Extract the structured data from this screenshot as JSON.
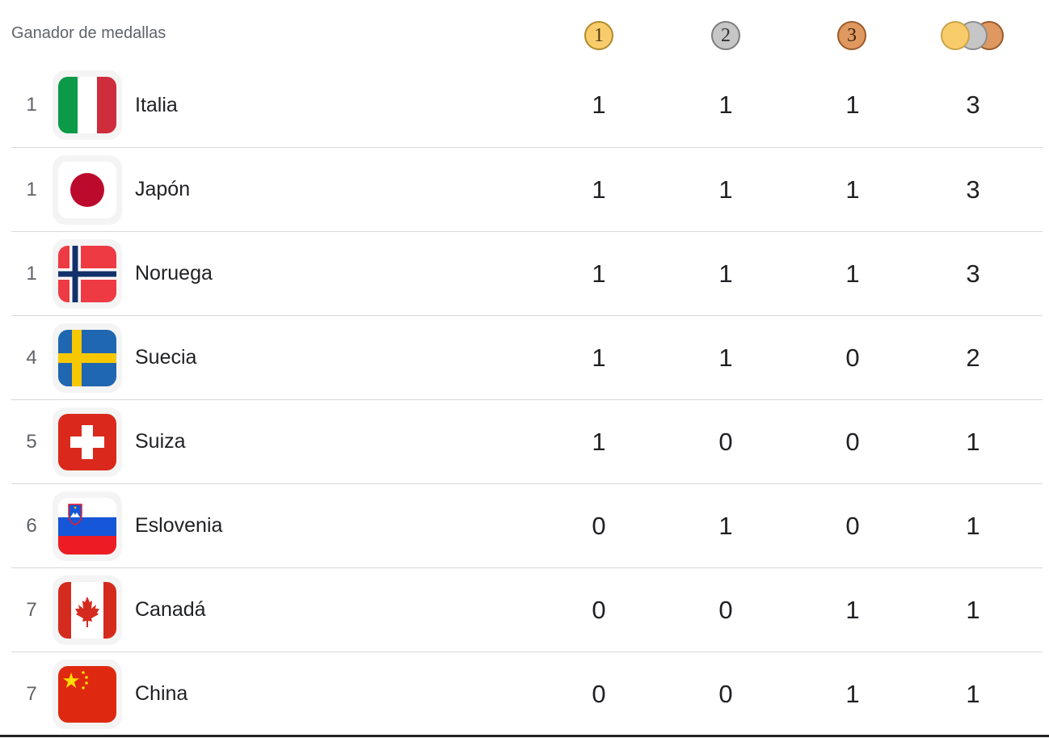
{
  "header": {
    "title": "Ganador de medallas",
    "gold_label": "1",
    "silver_label": "2",
    "bronze_label": "3",
    "total_icon": "stacked-medals-icon"
  },
  "colors": {
    "gold": "#f9cc6b",
    "silver": "#c6c6c6",
    "bronze": "#df9960",
    "divider": "#d8d8d8"
  },
  "rows": [
    {
      "rank": "1",
      "country": "Italia",
      "flag": "italy-flag-icon",
      "gold": "1",
      "silver": "1",
      "bronze": "1",
      "total": "3"
    },
    {
      "rank": "1",
      "country": "Japón",
      "flag": "japan-flag-icon",
      "gold": "1",
      "silver": "1",
      "bronze": "1",
      "total": "3"
    },
    {
      "rank": "1",
      "country": "Noruega",
      "flag": "norway-flag-icon",
      "gold": "1",
      "silver": "1",
      "bronze": "1",
      "total": "3"
    },
    {
      "rank": "4",
      "country": "Suecia",
      "flag": "sweden-flag-icon",
      "gold": "1",
      "silver": "1",
      "bronze": "0",
      "total": "2"
    },
    {
      "rank": "5",
      "country": "Suiza",
      "flag": "switzerland-flag-icon",
      "gold": "1",
      "silver": "0",
      "bronze": "0",
      "total": "1"
    },
    {
      "rank": "6",
      "country": "Eslovenia",
      "flag": "slovenia-flag-icon",
      "gold": "0",
      "silver": "1",
      "bronze": "0",
      "total": "1"
    },
    {
      "rank": "7",
      "country": "Canadá",
      "flag": "canada-flag-icon",
      "gold": "0",
      "silver": "0",
      "bronze": "1",
      "total": "1"
    },
    {
      "rank": "7",
      "country": "China",
      "flag": "china-flag-icon",
      "gold": "0",
      "silver": "0",
      "bronze": "1",
      "total": "1"
    }
  ]
}
